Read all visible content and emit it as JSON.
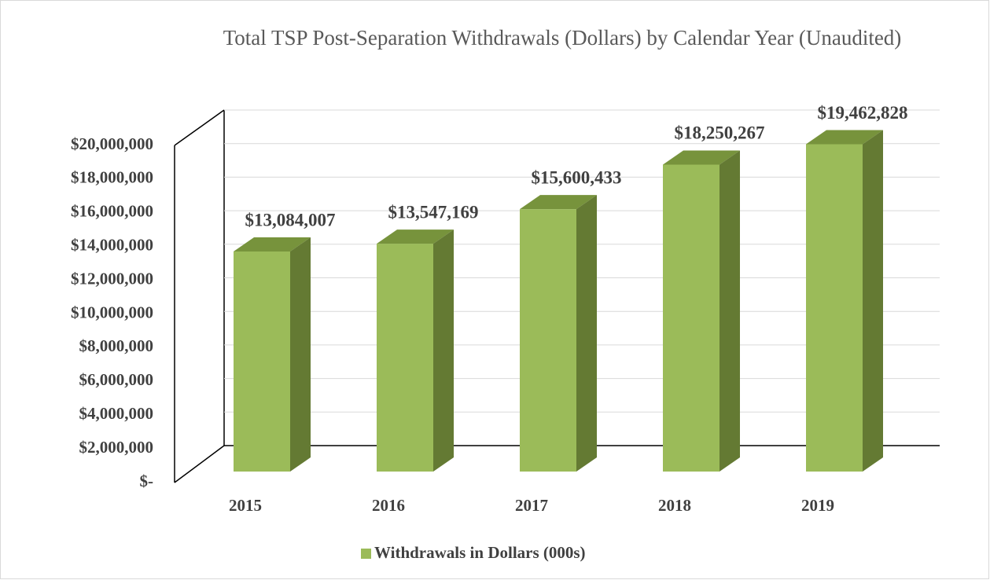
{
  "chart_data": {
    "type": "bar3d",
    "title": "Total TSP Post-Separation Withdrawals (Dollars) by Calendar Year (Unaudited)",
    "categories": [
      "2015",
      "2016",
      "2017",
      "2018",
      "2019"
    ],
    "series": [
      {
        "name": "Withdrawals in Dollars (000s)",
        "color": "#9bbb59",
        "values": [
          13084007,
          13547169,
          15600433,
          18250267,
          19462828
        ],
        "value_labels": [
          "$13,084,007",
          "$13,547,169",
          "$15,600,433",
          "$18,250,267",
          "$19,462,828"
        ]
      }
    ],
    "ylim": [
      0,
      20000000
    ],
    "yticks": [
      {
        "value": 0,
        "label": "$-"
      },
      {
        "value": 2000000,
        "label": "$2,000,000"
      },
      {
        "value": 4000000,
        "label": "$4,000,000"
      },
      {
        "value": 6000000,
        "label": "$6,000,000"
      },
      {
        "value": 8000000,
        "label": "$8,000,000"
      },
      {
        "value": 10000000,
        "label": "$10,000,000"
      },
      {
        "value": 12000000,
        "label": "$12,000,000"
      },
      {
        "value": 14000000,
        "label": "$14,000,000"
      },
      {
        "value": 16000000,
        "label": "$16,000,000"
      },
      {
        "value": 18000000,
        "label": "$18,000,000"
      },
      {
        "value": 20000000,
        "label": "$20,000,000"
      }
    ],
    "grid": true,
    "legend": "bottom"
  }
}
